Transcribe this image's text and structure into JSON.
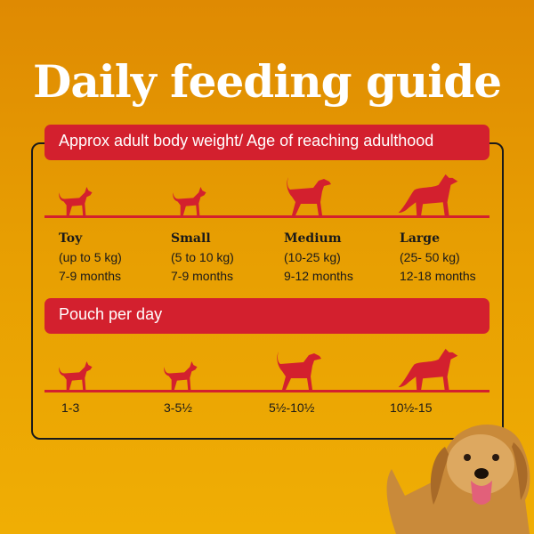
{
  "title": "Daily feeding guide",
  "section1": {
    "heading": "Approx adult body weight/ Age of reaching adulthood",
    "sizes": [
      {
        "name": "Toy",
        "weight": "(up to 5 kg)",
        "age": "7-9 months"
      },
      {
        "name": "Small",
        "weight": "(5 to 10 kg)",
        "age": "7-9 months"
      },
      {
        "name": "Medium",
        "weight": "(10-25 kg)",
        "age": "9-12 months"
      },
      {
        "name": "Large",
        "weight": "(25- 50 kg)",
        "age": "12-18 months"
      }
    ]
  },
  "section2": {
    "heading": "Pouch per day",
    "pouches": [
      "1-3",
      "3-5½",
      "5½-10½",
      "10½-15"
    ]
  },
  "colors": {
    "accent": "#D3202E",
    "background": "#E79E02"
  }
}
